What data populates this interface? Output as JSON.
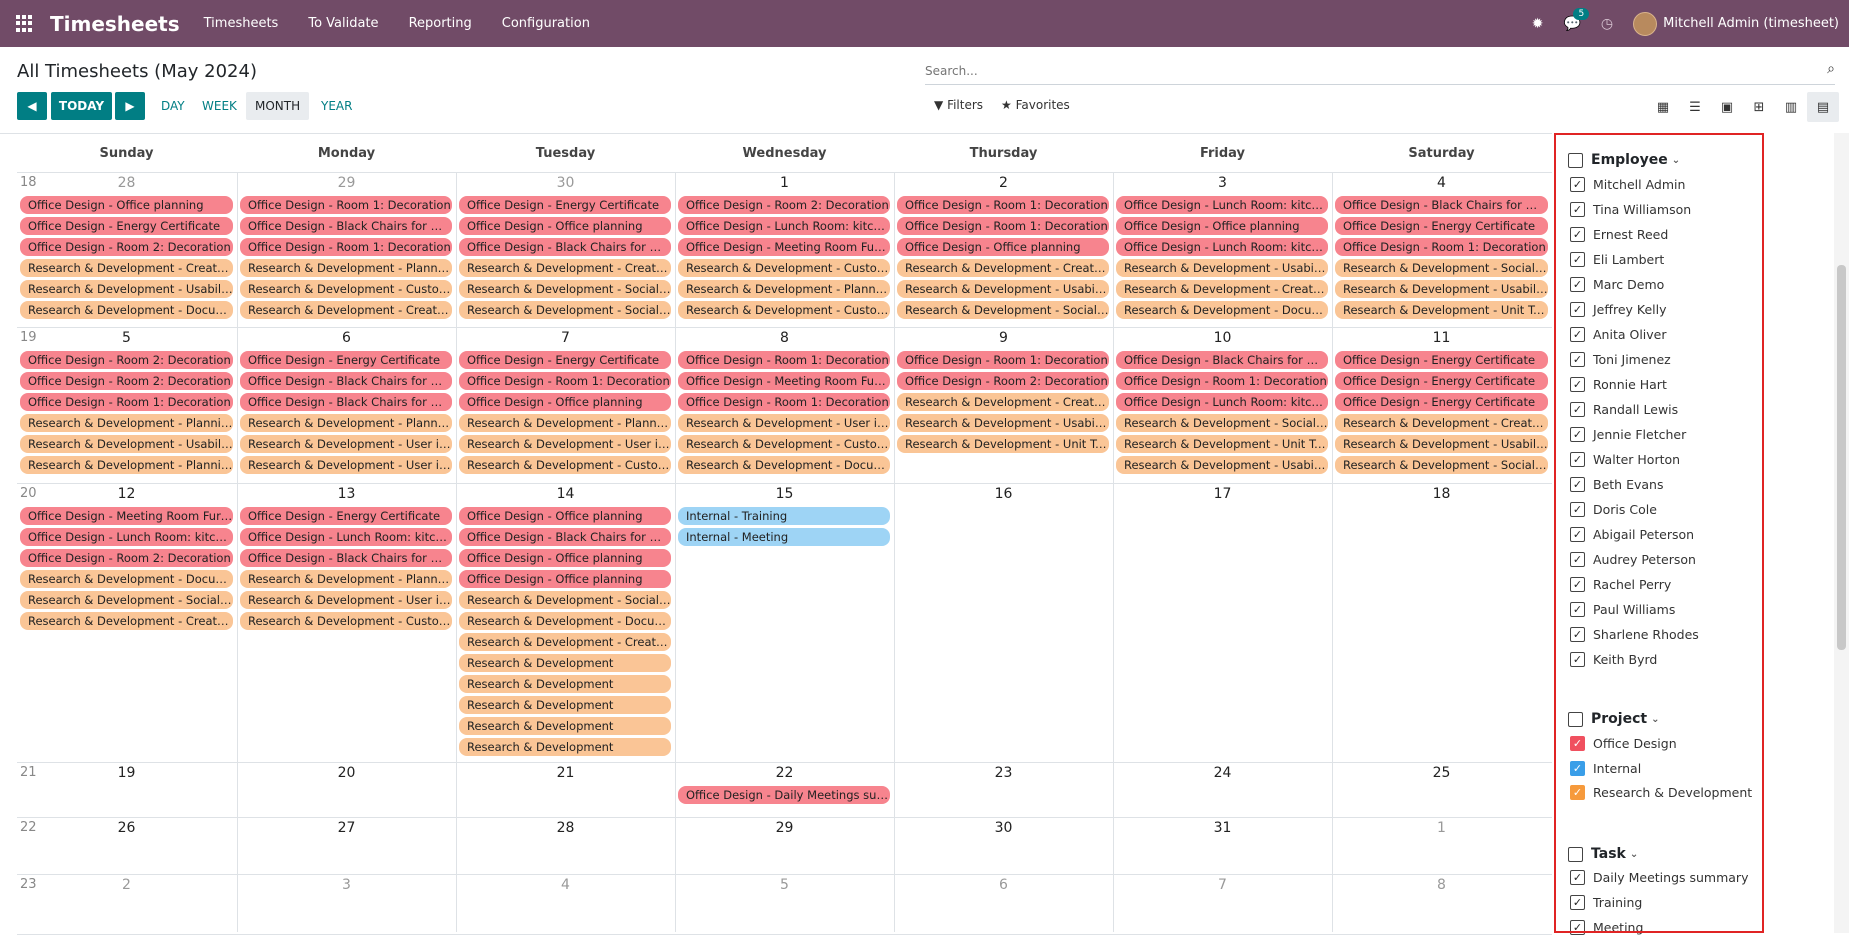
{
  "app": {
    "name": "Timesheets",
    "menu": [
      "Timesheets",
      "To Validate",
      "Reporting",
      "Configuration"
    ],
    "notification_count": "5",
    "user": "Mitchell Admin (timesheet)"
  },
  "control": {
    "title": "All Timesheets (May 2024)",
    "search_placeholder": "Search...",
    "today_label": "TODAY",
    "scales": [
      "DAY",
      "WEEK",
      "MONTH",
      "YEAR"
    ],
    "active_scale": "MONTH",
    "filters_label": "Filters",
    "favorites_label": "Favorites"
  },
  "colors": {
    "office_design": "#F7848E",
    "internal": "#9ED4F5",
    "research": "#FAC596",
    "topbar": "#714B67",
    "accent": "#017e84"
  },
  "calendar": {
    "weekdays": [
      "Sunday",
      "Monday",
      "Tuesday",
      "Wednesday",
      "Thursday",
      "Friday",
      "Saturday"
    ],
    "weeks": [
      {
        "num": "18",
        "days": [
          {
            "n": "28",
            "muted": true,
            "events": [
              [
                "od",
                "Office Design - Office planning"
              ],
              [
                "od",
                "Office Design - Energy Certificate"
              ],
              [
                "od",
                "Office Design - Room 2: Decoration"
              ],
              [
                "rd",
                "Research & Development - Create ..."
              ],
              [
                "rd",
                "Research & Development - Usabilit..."
              ],
              [
                "rd",
                "Research & Development - Docume..."
              ]
            ]
          },
          {
            "n": "29",
            "muted": true,
            "events": [
              [
                "od",
                "Office Design - Room 1: Decoration"
              ],
              [
                "od",
                "Office Design - Black Chairs for ma..."
              ],
              [
                "od",
                "Office Design - Room 1: Decoration"
              ],
              [
                "rd",
                "Research & Development - Plannin..."
              ],
              [
                "rd",
                "Research & Development - Custom..."
              ],
              [
                "rd",
                "Research & Development - Create n..."
              ]
            ]
          },
          {
            "n": "30",
            "muted": true,
            "events": [
              [
                "od",
                "Office Design - Energy Certificate"
              ],
              [
                "od",
                "Office Design - Office planning"
              ],
              [
                "od",
                "Office Design - Black Chairs for ma..."
              ],
              [
                "rd",
                "Research & Development - Create ..."
              ],
              [
                "rd",
                "Research & Development - Social n..."
              ],
              [
                "rd",
                "Research & Development - Social n..."
              ]
            ]
          },
          {
            "n": "1",
            "events": [
              [
                "od",
                "Office Design - Room 2: Decoration"
              ],
              [
                "od",
                "Office Design - Lunch Room: kitchen"
              ],
              [
                "od",
                "Office Design - Meeting Room Furn..."
              ],
              [
                "rd",
                "Research & Development - Custom..."
              ],
              [
                "rd",
                "Research & Development - Plannin..."
              ],
              [
                "rd",
                "Research & Development - Custom..."
              ]
            ]
          },
          {
            "n": "2",
            "events": [
              [
                "od",
                "Office Design - Room 1: Decoration"
              ],
              [
                "od",
                "Office Design - Room 1: Decoration"
              ],
              [
                "od",
                "Office Design - Office planning"
              ],
              [
                "rd",
                "Research & Development - Create ..."
              ],
              [
                "rd",
                "Research & Development - Usabilit..."
              ],
              [
                "rd",
                "Research & Development - Social n..."
              ]
            ]
          },
          {
            "n": "3",
            "events": [
              [
                "od",
                "Office Design - Lunch Room: kitchen"
              ],
              [
                "od",
                "Office Design - Office planning"
              ],
              [
                "od",
                "Office Design - Lunch Room: kitchen"
              ],
              [
                "rd",
                "Research & Development - Usabilit..."
              ],
              [
                "rd",
                "Research & Development - Create ..."
              ],
              [
                "rd",
                "Research & Development - Docum..."
              ]
            ]
          },
          {
            "n": "4",
            "events": [
              [
                "od",
                "Office Design - Black Chairs for ma..."
              ],
              [
                "od",
                "Office Design - Energy Certificate"
              ],
              [
                "od",
                "Office Design - Room 1: Decoration"
              ],
              [
                "rd",
                "Research & Development - Social n..."
              ],
              [
                "rd",
                "Research & Development - Usabilit..."
              ],
              [
                "rd",
                "Research & Development - Unit Tes..."
              ]
            ]
          }
        ]
      },
      {
        "num": "19",
        "days": [
          {
            "n": "5",
            "events": [
              [
                "od",
                "Office Design - Room 2: Decoration"
              ],
              [
                "od",
                "Office Design - Room 2: Decoration"
              ],
              [
                "od",
                "Office Design - Room 1: Decoration"
              ],
              [
                "rd",
                "Research & Development - Plannin..."
              ],
              [
                "rd",
                "Research & Development - Usabilit..."
              ],
              [
                "rd",
                "Research & Development - Plannin..."
              ]
            ]
          },
          {
            "n": "6",
            "events": [
              [
                "od",
                "Office Design - Energy Certificate"
              ],
              [
                "od",
                "Office Design - Black Chairs for ma..."
              ],
              [
                "od",
                "Office Design - Black Chairs for ma..."
              ],
              [
                "rd",
                "Research & Development - Plannin..."
              ],
              [
                "rd",
                "Research & Development - User int..."
              ],
              [
                "rd",
                "Research & Development - User int..."
              ]
            ]
          },
          {
            "n": "7",
            "events": [
              [
                "od",
                "Office Design - Energy Certificate"
              ],
              [
                "od",
                "Office Design - Room 1: Decoration"
              ],
              [
                "od",
                "Office Design - Office planning"
              ],
              [
                "rd",
                "Research & Development - Plannin..."
              ],
              [
                "rd",
                "Research & Development - User int..."
              ],
              [
                "rd",
                "Research & Development - Custom..."
              ]
            ]
          },
          {
            "n": "8",
            "events": [
              [
                "od",
                "Office Design - Room 1: Decoration"
              ],
              [
                "od",
                "Office Design - Meeting Room Furn..."
              ],
              [
                "od",
                "Office Design - Room 1: Decoration"
              ],
              [
                "rd",
                "Research & Development - User int..."
              ],
              [
                "rd",
                "Research & Development - Custom..."
              ],
              [
                "rd",
                "Research & Development - Docum..."
              ]
            ]
          },
          {
            "n": "9",
            "events": [
              [
                "od",
                "Office Design - Room 1: Decoration"
              ],
              [
                "od",
                "Office Design - Room 2: Decoration"
              ],
              [
                "rd",
                "Research & Development - Create ..."
              ],
              [
                "rd",
                "Research & Development - Usabilit..."
              ],
              [
                "rd",
                "Research & Development - Unit Tes..."
              ]
            ]
          },
          {
            "n": "10",
            "events": [
              [
                "od",
                "Office Design - Black Chairs for ma..."
              ],
              [
                "od",
                "Office Design - Room 1: Decoration"
              ],
              [
                "od",
                "Office Design - Lunch Room: kitchen"
              ],
              [
                "rd",
                "Research & Development - Social n..."
              ],
              [
                "rd",
                "Research & Development - Unit Tes..."
              ],
              [
                "rd",
                "Research & Development - Usabilit..."
              ]
            ]
          },
          {
            "n": "11",
            "events": [
              [
                "od",
                "Office Design - Energy Certificate"
              ],
              [
                "od",
                "Office Design - Energy Certificate"
              ],
              [
                "od",
                "Office Design - Energy Certificate"
              ],
              [
                "rd",
                "Research & Development - Create n..."
              ],
              [
                "rd",
                "Research & Development - Usabilit..."
              ],
              [
                "rd",
                "Research & Development - Social n..."
              ]
            ]
          }
        ]
      },
      {
        "num": "20",
        "days": [
          {
            "n": "12",
            "events": [
              [
                "od",
                "Office Design - Meeting Room Furn..."
              ],
              [
                "od",
                "Office Design - Lunch Room: kitchen"
              ],
              [
                "od",
                "Office Design - Room 2: Decoration"
              ],
              [
                "rd",
                "Research & Development - Docume..."
              ],
              [
                "rd",
                "Research & Development - Social n..."
              ],
              [
                "rd",
                "Research & Development - Create ..."
              ]
            ]
          },
          {
            "n": "13",
            "events": [
              [
                "od",
                "Office Design - Energy Certificate"
              ],
              [
                "od",
                "Office Design - Lunch Room: kitchen"
              ],
              [
                "od",
                "Office Design - Black Chairs for ma..."
              ],
              [
                "rd",
                "Research & Development - Plannin..."
              ],
              [
                "rd",
                "Research & Development - User int..."
              ],
              [
                "rd",
                "Research & Development - Custom..."
              ]
            ]
          },
          {
            "n": "14",
            "events": [
              [
                "od",
                "Office Design - Office planning"
              ],
              [
                "od",
                "Office Design - Black Chairs for ma..."
              ],
              [
                "od",
                "Office Design - Office planning"
              ],
              [
                "od",
                "Office Design - Office planning"
              ],
              [
                "rd",
                "Research & Development - Social n..."
              ],
              [
                "rd",
                "Research & Development - Docum..."
              ],
              [
                "rd",
                "Research & Development - Create ..."
              ],
              [
                "rd",
                "Research & Development"
              ],
              [
                "rd",
                "Research & Development"
              ],
              [
                "rd",
                "Research & Development"
              ],
              [
                "rd",
                "Research & Development"
              ],
              [
                "rd",
                "Research & Development"
              ]
            ]
          },
          {
            "n": "15",
            "events": [
              [
                "in",
                "Internal - Training"
              ],
              [
                "in",
                "Internal - Meeting"
              ]
            ]
          },
          {
            "n": "16",
            "events": []
          },
          {
            "n": "17",
            "events": []
          },
          {
            "n": "18",
            "events": []
          }
        ]
      },
      {
        "num": "21",
        "days": [
          {
            "n": "19",
            "events": []
          },
          {
            "n": "20",
            "events": []
          },
          {
            "n": "21",
            "events": []
          },
          {
            "n": "22",
            "events": [
              [
                "od",
                "Office Design - Daily Meetings sum..."
              ]
            ]
          },
          {
            "n": "23",
            "events": []
          },
          {
            "n": "24",
            "events": []
          },
          {
            "n": "25",
            "events": []
          }
        ]
      },
      {
        "num": "22",
        "days": [
          {
            "n": "26",
            "events": []
          },
          {
            "n": "27",
            "events": []
          },
          {
            "n": "28",
            "events": []
          },
          {
            "n": "29",
            "events": []
          },
          {
            "n": "30",
            "events": []
          },
          {
            "n": "31",
            "events": []
          },
          {
            "n": "1",
            "muted": true,
            "events": []
          }
        ]
      },
      {
        "num": "23",
        "days": [
          {
            "n": "2",
            "muted": true,
            "events": []
          },
          {
            "n": "3",
            "muted": true,
            "events": []
          },
          {
            "n": "4",
            "muted": true,
            "events": []
          },
          {
            "n": "5",
            "muted": true,
            "events": []
          },
          {
            "n": "6",
            "muted": true,
            "events": []
          },
          {
            "n": "7",
            "muted": true,
            "events": []
          },
          {
            "n": "8",
            "muted": true,
            "events": []
          }
        ]
      }
    ]
  },
  "sidebar": {
    "employee": {
      "title": "Employee",
      "items": [
        "Mitchell Admin",
        "Tina Williamson",
        "Ernest Reed",
        "Eli Lambert",
        "Marc Demo",
        "Jeffrey Kelly",
        "Anita Oliver",
        "Toni Jimenez",
        "Ronnie Hart",
        "Randall Lewis",
        "Jennie Fletcher",
        "Walter Horton",
        "Beth Evans",
        "Doris Cole",
        "Abigail Peterson",
        "Audrey Peterson",
        "Rachel Perry",
        "Paul Williams",
        "Sharlene Rhodes",
        "Keith Byrd"
      ]
    },
    "project": {
      "title": "Project",
      "items": [
        [
          "Office Design",
          "red"
        ],
        [
          "Internal",
          "blue"
        ],
        [
          "Research & Development",
          "orange"
        ]
      ]
    },
    "task": {
      "title": "Task",
      "items": [
        "Daily Meetings summary",
        "Training",
        "Meeting"
      ]
    }
  }
}
